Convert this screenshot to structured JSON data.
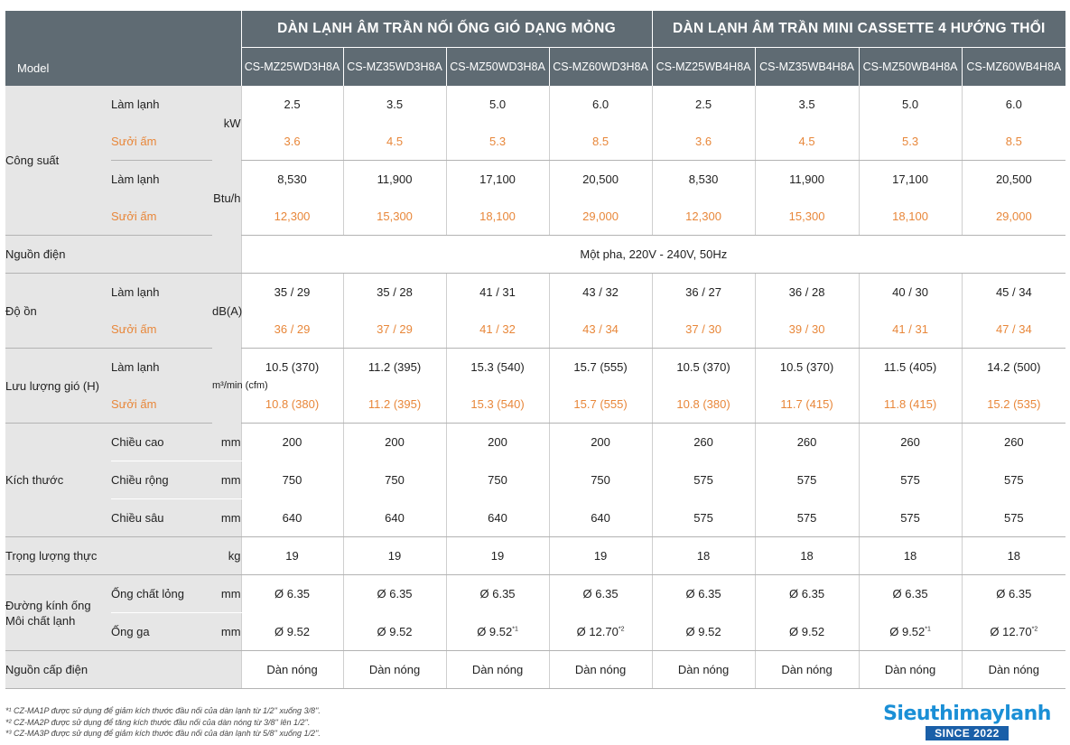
{
  "header": {
    "model_label": "Model",
    "group1": "DÀN LẠNH ÂM TRẦN NỐI ỐNG GIÓ DẠNG MỎNG",
    "group2": "DÀN LẠNH ÂM TRẦN MINI CASSETTE 4 HƯỚNG THỔI",
    "models": [
      "CS-MZ25WD3H8A",
      "CS-MZ35WD3H8A",
      "CS-MZ50WD3H8A",
      "CS-MZ60WD3H8A",
      "CS-MZ25WB4H8A",
      "CS-MZ35WB4H8A",
      "CS-MZ50WB4H8A",
      "CS-MZ60WB4H8A"
    ]
  },
  "rows": {
    "cong_suat": {
      "label": "Công suất",
      "cool_label": "Làm lạnh",
      "heat_label": "Sưởi ấm",
      "unit_kw": "kW",
      "unit_btu": "Btu/h",
      "kw_cool": [
        "2.5",
        "3.5",
        "5.0",
        "6.0",
        "2.5",
        "3.5",
        "5.0",
        "6.0"
      ],
      "kw_heat": [
        "3.6",
        "4.5",
        "5.3",
        "8.5",
        "3.6",
        "4.5",
        "5.3",
        "8.5"
      ],
      "btu_cool": [
        "8,530",
        "11,900",
        "17,100",
        "20,500",
        "8,530",
        "11,900",
        "17,100",
        "20,500"
      ],
      "btu_heat": [
        "12,300",
        "15,300",
        "18,100",
        "29,000",
        "12,300",
        "15,300",
        "18,100",
        "29,000"
      ]
    },
    "nguon_dien": {
      "label": "Nguồn điện",
      "value": "Một pha, 220V - 240V, 50Hz"
    },
    "do_on": {
      "label": "Độ ồn",
      "cool_label": "Làm lạnh",
      "heat_label": "Sưởi ấm",
      "unit": "dB(A)",
      "cool": [
        "35 / 29",
        "35 / 28",
        "41 / 31",
        "43 / 32",
        "36 / 27",
        "36 / 28",
        "40 / 30",
        "45 / 34"
      ],
      "heat": [
        "36 / 29",
        "37 / 29",
        "41 / 32",
        "43 / 34",
        "37 / 30",
        "39 / 30",
        "41 / 31",
        "47 / 34"
      ]
    },
    "luu_luong": {
      "label": "Lưu lượng gió (H)",
      "cool_label": "Làm lạnh",
      "heat_label": "Sưởi ấm",
      "unit": "m³/min (cfm)",
      "cool": [
        "10.5 (370)",
        "11.2 (395)",
        "15.3 (540)",
        "15.7 (555)",
        "10.5 (370)",
        "10.5 (370)",
        "11.5 (405)",
        "14.2 (500)"
      ],
      "heat": [
        "10.8 (380)",
        "11.2 (395)",
        "15.3 (540)",
        "15.7 (555)",
        "10.8 (380)",
        "11.7 (415)",
        "11.8 (415)",
        "15.2 (535)"
      ]
    },
    "kich_thuoc": {
      "label": "Kích thước",
      "height_label": "Chiều cao",
      "width_label": "Chiều rộng",
      "depth_label": "Chiều sâu",
      "unit": "mm",
      "height": [
        "200",
        "200",
        "200",
        "200",
        "260",
        "260",
        "260",
        "260"
      ],
      "width": [
        "750",
        "750",
        "750",
        "750",
        "575",
        "575",
        "575",
        "575"
      ],
      "depth": [
        "640",
        "640",
        "640",
        "640",
        "575",
        "575",
        "575",
        "575"
      ]
    },
    "trong_luong": {
      "label": "Trọng lượng thực",
      "unit": "kg",
      "values": [
        "19",
        "19",
        "19",
        "19",
        "18",
        "18",
        "18",
        "18"
      ]
    },
    "duong_kinh": {
      "label": "Đường kính ống Môi chất lạnh",
      "liquid_label": "Ống chất lỏng",
      "gas_label": "Ống ga",
      "unit": "mm",
      "liquid": [
        "Ø 6.35",
        "Ø 6.35",
        "Ø 6.35",
        "Ø 6.35",
        "Ø 6.35",
        "Ø 6.35",
        "Ø 6.35",
        "Ø 6.35"
      ],
      "gas": [
        "Ø 9.52",
        "Ø 9.52",
        "Ø 9.52",
        "Ø 12.70",
        "Ø 9.52",
        "Ø 9.52",
        "Ø 9.52",
        "Ø 12.70"
      ],
      "gas_notes": [
        "",
        "",
        "*1",
        "*2",
        "",
        "",
        "*1",
        "*2"
      ]
    },
    "nguon_cap": {
      "label": "Nguồn cấp điện",
      "values": [
        "Dàn nóng",
        "Dàn nóng",
        "Dàn nóng",
        "Dàn nóng",
        "Dàn nóng",
        "Dàn nóng",
        "Dàn nóng",
        "Dàn nóng"
      ]
    }
  },
  "footnotes": [
    "*¹ CZ-MA1P được sử dụng để giảm kích thước đầu nối của dàn lạnh từ 1/2'' xuống 3/8''.",
    "*² CZ-MA2P được sử dụng để tăng kích thước đầu nối của dàn nóng từ 3/8'' lên 1/2''.",
    "*³ CZ-MA3P được sử dụng để giảm kích thước đầu nối của dàn lạnh từ 5/8'' xuống 1/2''."
  ],
  "logo": {
    "name": "Sieuthimaylanh",
    "tagline": "SINCE 2022"
  },
  "colors": {
    "header_bg": "#5f6b73",
    "label_bg": "#e6e6e6",
    "heat_text": "#e8873a",
    "logo_blue": "#1a8fd6"
  }
}
